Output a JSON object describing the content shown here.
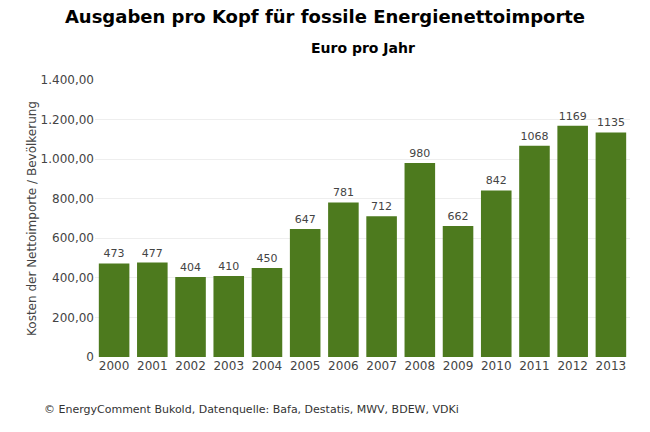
{
  "chart_data": {
    "type": "bar",
    "title": "Ausgaben pro Kopf für fossile Energienettoimporte",
    "subtitle": "Euro pro Jahr",
    "ylabel": "Kosten der Nettoimporte / Bevölkerung",
    "footnote": "© EnergyComment Bukold, Datenquelle: Bafa, Destatis, MWV, BDEW, VDKi",
    "categories": [
      "2000",
      "2001",
      "2002",
      "2003",
      "2004",
      "2005",
      "2006",
      "2007",
      "2008",
      "2009",
      "2010",
      "2011",
      "2012",
      "2013"
    ],
    "values": [
      473,
      477,
      404,
      410,
      450,
      647,
      781,
      712,
      980,
      662,
      842,
      1068,
      1169,
      1135
    ],
    "color": "#4d7a1e",
    "ylim": [
      0,
      1400
    ],
    "yticks": [
      0,
      {
        "value": 200,
        "label": "200,00"
      },
      {
        "value": 400,
        "label": "400,00"
      },
      {
        "value": 600,
        "label": "600,00"
      },
      {
        "value": 800,
        "label": "800,00"
      },
      {
        "value": 1000,
        "label": "1.000,00"
      },
      {
        "value": 1200,
        "label": "1.200,00"
      },
      {
        "value": 1400,
        "label": "1.400,00"
      }
    ],
    "grid": true,
    "data_labels": true
  }
}
